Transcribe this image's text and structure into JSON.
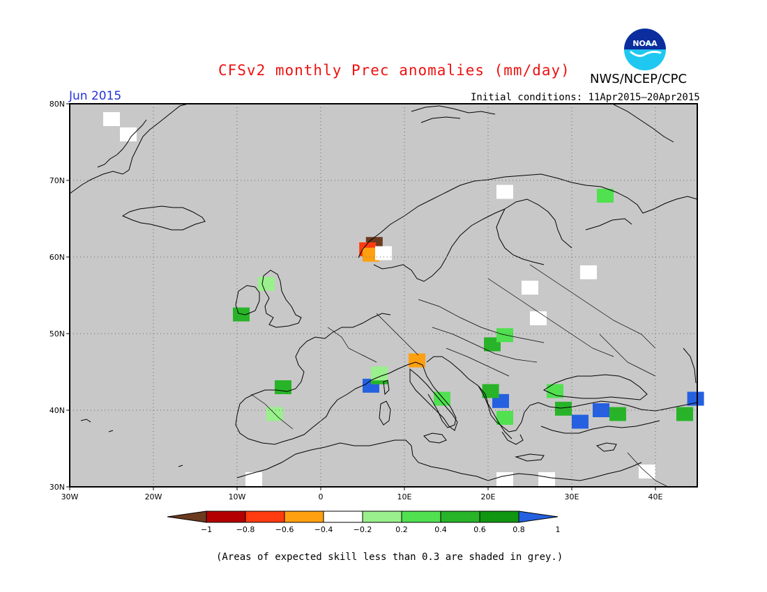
{
  "title": "CFSv2 monthly Prec anomalies (mm/day)",
  "org": "NWS/NCEP/CPC",
  "logo_text": "NOAA",
  "forecast_month": "Jun 2015",
  "initial_conditions": "Initial conditions: 11Apr2015–20Apr2015",
  "footnote": "(Areas of expected skill less than 0.3 are shaded in grey.)",
  "map": {
    "lat_labels": [
      "80N",
      "70N",
      "60N",
      "50N",
      "40N",
      "30N"
    ],
    "lon_labels": [
      "30W",
      "20W",
      "10W",
      "0",
      "10E",
      "20E",
      "30E",
      "40E"
    ],
    "lon_range": [
      -30,
      45
    ],
    "lat_range": [
      30,
      80
    ],
    "ocean_color": "#c8c8c8",
    "grid": "dotted"
  },
  "colorbar": {
    "ticks": [
      "−1",
      "−0.8",
      "−0.6",
      "−0.4",
      "−0.2",
      "0.2",
      "0.4",
      "0.6",
      "0.8",
      "1"
    ],
    "colors": [
      "#6b3a1f",
      "#b40000",
      "#ff3b10",
      "#ffa010",
      "#ffffff",
      "#9af08c",
      "#50e050",
      "#28b428",
      "#119611",
      "#2560e0"
    ]
  },
  "anomaly_cells": [
    {
      "lon": 6.4,
      "lat": 61.7,
      "value": -1.0
    },
    {
      "lon": 5.6,
      "lat": 61.0,
      "value": -0.7
    },
    {
      "lon": 6.0,
      "lat": 60.3,
      "value": -0.5
    },
    {
      "lon": 7.5,
      "lat": 60.5,
      "value": 0.1
    },
    {
      "lon": 11.5,
      "lat": 46.5,
      "value": -0.3
    },
    {
      "lon": -9.5,
      "lat": 52.5,
      "value": 0.7
    },
    {
      "lon": -6.5,
      "lat": 56.5,
      "value": 0.3
    },
    {
      "lon": -4.5,
      "lat": 43.0,
      "value": 0.7
    },
    {
      "lon": -5.5,
      "lat": 39.5,
      "value": 0.3
    },
    {
      "lon": 6.0,
      "lat": 43.2,
      "value": 1.0
    },
    {
      "lon": 7.0,
      "lat": 44.3,
      "value": 0.7
    },
    {
      "lon": 7.0,
      "lat": 44.8,
      "value": 0.3
    },
    {
      "lon": 14.5,
      "lat": 41.5,
      "value": 0.5
    },
    {
      "lon": 20.5,
      "lat": 48.6,
      "value": 0.7
    },
    {
      "lon": 22.0,
      "lat": 49.8,
      "value": 0.5
    },
    {
      "lon": 21.5,
      "lat": 41.2,
      "value": 1.0
    },
    {
      "lon": 20.3,
      "lat": 42.5,
      "value": 0.7
    },
    {
      "lon": 22.0,
      "lat": 39.0,
      "value": 0.5
    },
    {
      "lon": 31.0,
      "lat": 38.5,
      "value": 1.0
    },
    {
      "lon": 33.5,
      "lat": 40.0,
      "value": 1.0
    },
    {
      "lon": 29.0,
      "lat": 40.2,
      "value": 0.7
    },
    {
      "lon": 35.5,
      "lat": 39.5,
      "value": 0.7
    },
    {
      "lon": 28.0,
      "lat": 42.5,
      "value": 0.5
    },
    {
      "lon": 43.5,
      "lat": 39.5,
      "value": 0.7
    },
    {
      "lon": 44.8,
      "lat": 41.5,
      "value": 1.0
    },
    {
      "lon": 34.0,
      "lat": 68.0,
      "value": 0.4
    },
    {
      "lon": 25.0,
      "lat": 56.0,
      "value": 0.1
    },
    {
      "lon": 26.0,
      "lat": 52.0,
      "value": 0.1
    },
    {
      "lon": 22.0,
      "lat": 68.5,
      "value": 0.1
    },
    {
      "lon": 32.0,
      "lat": 58.0,
      "value": 0.1
    },
    {
      "lon": 22.0,
      "lat": 31.0,
      "value": 0.1
    },
    {
      "lon": 27.0,
      "lat": 31.0,
      "value": 0.1
    },
    {
      "lon": 39.0,
      "lat": 32.0,
      "value": 0.1
    },
    {
      "lon": -8.0,
      "lat": 31.0,
      "value": 0.1
    },
    {
      "lon": -23.0,
      "lat": 76.0,
      "value": 0.1
    },
    {
      "lon": -25.0,
      "lat": 78.0,
      "value": 0.1
    }
  ]
}
